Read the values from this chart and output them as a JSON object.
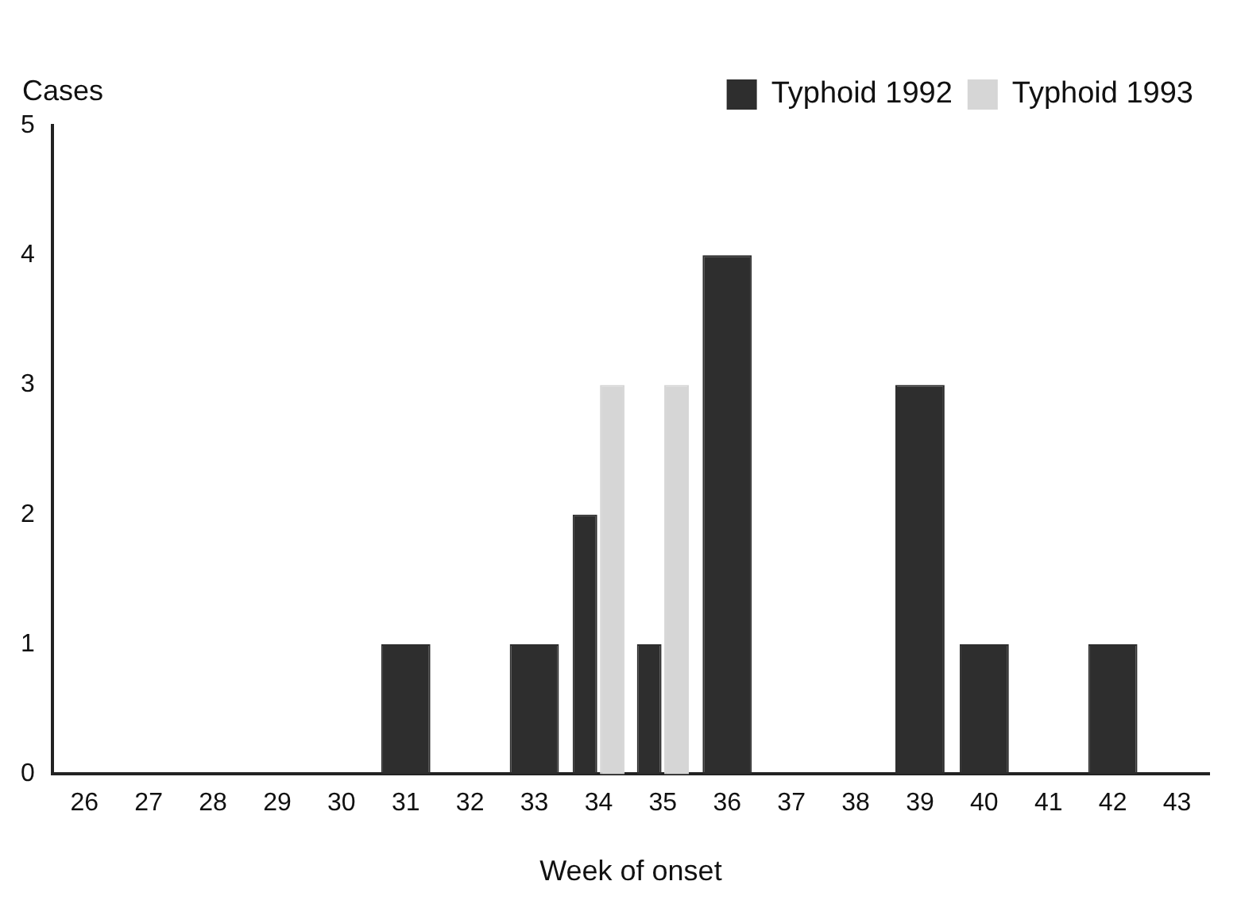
{
  "chart_data": {
    "type": "bar",
    "xlabel": "Week of onset",
    "ylabel": "Cases",
    "categories": [
      "26",
      "27",
      "28",
      "29",
      "30",
      "31",
      "32",
      "33",
      "34",
      "35",
      "36",
      "37",
      "38",
      "39",
      "40",
      "41",
      "42",
      "43"
    ],
    "series": [
      {
        "name": "Typhoid 1992",
        "color": "#2e2e2e",
        "values": [
          null,
          null,
          null,
          null,
          null,
          1,
          null,
          1,
          2,
          1,
          4,
          null,
          null,
          3,
          1,
          null,
          1,
          null
        ]
      },
      {
        "name": "Typhoid 1993",
        "color": "#d6d6d6",
        "values": [
          null,
          null,
          null,
          null,
          null,
          null,
          null,
          null,
          3,
          3,
          null,
          null,
          null,
          null,
          null,
          null,
          null,
          null
        ]
      }
    ],
    "ylim": [
      0,
      5
    ],
    "yticks": [
      0,
      1,
      2,
      3,
      4,
      5
    ],
    "grid": false,
    "legend": "top right"
  }
}
